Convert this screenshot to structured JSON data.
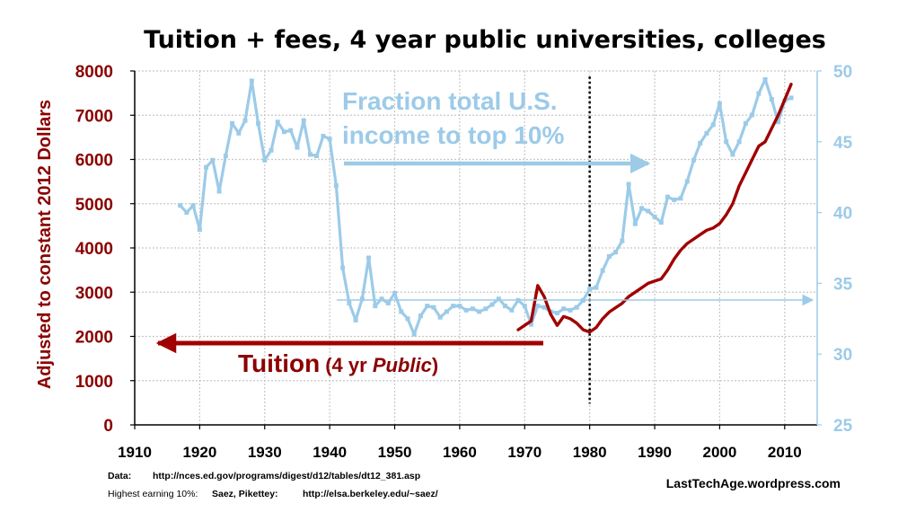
{
  "chart_data": {
    "type": "line",
    "title": "Tuition + fees, 4 year public universities, colleges",
    "xlabel": "",
    "ylabel": "Adjusted to constant 2012 Dollars",
    "xlim": [
      1910,
      2015
    ],
    "ylim": [
      0,
      8000
    ],
    "y2lim": [
      25,
      50
    ],
    "x_ticks": [
      1910,
      1920,
      1930,
      1940,
      1950,
      1960,
      1970,
      1980,
      1990,
      2000,
      2010
    ],
    "y_ticks": [
      0,
      1000,
      2000,
      3000,
      4000,
      5000,
      6000,
      7000,
      8000
    ],
    "y2_ticks": [
      25,
      30,
      35,
      40,
      45,
      50
    ],
    "vertical_marker_x": 1980,
    "series": [
      {
        "name": "Tuition (4 yr Public)",
        "axis": "left",
        "color": "#a00000",
        "x": [
          1969,
          1970,
          1971,
          1972,
          1973,
          1974,
          1975,
          1976,
          1977,
          1978,
          1979,
          1980,
          1981,
          1982,
          1983,
          1984,
          1985,
          1986,
          1987,
          1988,
          1989,
          1990,
          1991,
          1992,
          1993,
          1994,
          1995,
          1996,
          1997,
          1998,
          1999,
          2000,
          2001,
          2002,
          2003,
          2004,
          2005,
          2006,
          2007,
          2008,
          2009,
          2010,
          2011
        ],
        "values": [
          2150,
          2250,
          2350,
          3150,
          2900,
          2500,
          2250,
          2450,
          2400,
          2300,
          2150,
          2100,
          2200,
          2400,
          2550,
          2650,
          2750,
          2900,
          3000,
          3100,
          3200,
          3250,
          3300,
          3500,
          3750,
          3950,
          4100,
          4200,
          4300,
          4400,
          4450,
          4550,
          4750,
          5000,
          5400,
          5700,
          6000,
          6300,
          6400,
          6700,
          7000,
          7350,
          7700
        ]
      },
      {
        "name": "Fraction total U.S. income to top 10%",
        "axis": "right",
        "color": "#9ccbe8",
        "x": [
          1917,
          1918,
          1919,
          1920,
          1921,
          1922,
          1923,
          1924,
          1925,
          1926,
          1927,
          1928,
          1929,
          1930,
          1931,
          1932,
          1933,
          1934,
          1935,
          1936,
          1937,
          1938,
          1939,
          1940,
          1941,
          1942,
          1943,
          1944,
          1945,
          1946,
          1947,
          1948,
          1949,
          1950,
          1951,
          1952,
          1953,
          1954,
          1955,
          1956,
          1957,
          1958,
          1959,
          1960,
          1961,
          1962,
          1963,
          1964,
          1965,
          1966,
          1967,
          1968,
          1969,
          1970,
          1971,
          1972,
          1973,
          1974,
          1975,
          1976,
          1977,
          1978,
          1979,
          1980,
          1981,
          1982,
          1983,
          1984,
          1985,
          1986,
          1987,
          1988,
          1989,
          1990,
          1991,
          1992,
          1993,
          1994,
          1995,
          1996,
          1997,
          1998,
          1999,
          2000,
          2001,
          2002,
          2003,
          2004,
          2005,
          2006,
          2007,
          2008,
          2009,
          2010,
          2011
        ],
        "values": [
          40.5,
          40,
          40.5,
          38.8,
          43.2,
          43.7,
          41.5,
          44,
          46.3,
          45.6,
          46.5,
          49.3,
          46.3,
          43.7,
          44.4,
          46.4,
          45.7,
          45.8,
          44.6,
          46.5,
          44.1,
          44,
          45.4,
          45.2,
          41.9,
          36.1,
          33.6,
          32.4,
          33.9,
          36.8,
          33.4,
          33.9,
          33.6,
          34.3,
          33,
          32.5,
          31.4,
          32.7,
          33.4,
          33.3,
          32.6,
          33,
          33.4,
          33.4,
          33.1,
          33.2,
          33,
          33.2,
          33.5,
          33.9,
          33.4,
          33.1,
          33.8,
          33.4,
          32.1,
          33.4,
          33.3,
          33,
          32.9,
          33.2,
          33.1,
          33.3,
          33.8,
          34.6,
          34.7,
          35.9,
          36.9,
          37.2,
          38,
          42,
          39.2,
          40.3,
          40.1,
          39.7,
          39.3,
          41.1,
          40.9,
          41,
          42.2,
          43.7,
          44.9,
          45.6,
          46.2,
          47.7,
          45,
          44.1,
          45,
          46.3,
          46.9,
          48.4,
          49.4,
          48,
          46.4,
          47.9,
          48.1
        ]
      }
    ],
    "annotations": {
      "blue_label_line1": "Fraction total U.S.",
      "blue_label_line2": "income to top 10%",
      "red_label_main": "Tuition",
      "red_label_paren_open": "(4 yr ",
      "red_label_italic": "Public",
      "red_label_paren_close": ")"
    }
  },
  "footer": {
    "data_label": "Data:",
    "data_url": "http://nces.ed.gov/programs/digest/d12/tables/dt12_381.asp",
    "source_label": "Highest earning 10%:",
    "source_authors": "Saez, Pikettey:",
    "source_url": "http://elsa.berkeley.edu/~saez/",
    "credit": "LastTechAge.wordpress.com"
  },
  "colors": {
    "tuition": "#a00000",
    "income": "#9ccbe8",
    "left_axis_text": "#8b0000",
    "right_axis_text": "#9ccbe8",
    "grid": "#c8c8c8"
  }
}
